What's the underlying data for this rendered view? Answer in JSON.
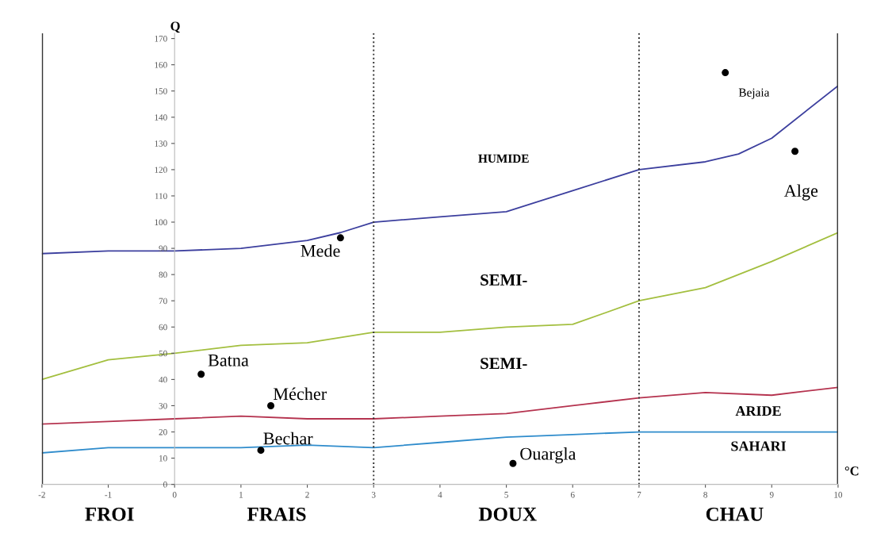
{
  "chart_data": {
    "type": "line",
    "xlabel": "°C",
    "ylabel": "Q",
    "xlim": [
      -2,
      10
    ],
    "xticks": [
      -2,
      -1,
      0,
      1,
      2,
      3,
      4,
      5,
      6,
      7,
      8,
      9,
      10
    ],
    "ylim": [
      0,
      172
    ],
    "yticks": [
      0,
      10,
      20,
      30,
      40,
      50,
      60,
      70,
      80,
      90,
      100,
      110,
      120,
      130,
      140,
      150,
      160,
      170
    ],
    "grid": false,
    "legend": false,
    "marker": "none",
    "line_style": "solid",
    "series": [
      {
        "color": "#3c3f9e",
        "x": [
          -2,
          -1,
          0,
          1,
          2,
          2.5,
          3,
          4,
          5,
          6,
          7,
          8,
          8.5,
          9,
          10
        ],
        "values": [
          88,
          89,
          89,
          90,
          93,
          96,
          100,
          102,
          104,
          112,
          120,
          123,
          126,
          132,
          152
        ]
      },
      {
        "color": "#a3bf3f",
        "x": [
          -2,
          -1,
          0,
          1,
          2,
          3,
          4,
          5,
          6,
          7,
          8,
          9,
          10
        ],
        "values": [
          40,
          47.5,
          50,
          53,
          54,
          58,
          58,
          60,
          61,
          70,
          75,
          85,
          96
        ]
      },
      {
        "color": "#b5334f",
        "x": [
          -2,
          -1,
          0,
          1,
          2,
          3,
          4,
          5,
          6,
          7,
          8,
          9,
          10
        ],
        "values": [
          23,
          24,
          25,
          26,
          25,
          25,
          26,
          27,
          30,
          33,
          35,
          34,
          37
        ]
      },
      {
        "color": "#2f8ccc",
        "x": [
          -2,
          -1,
          0,
          1,
          2,
          3,
          4,
          5,
          6,
          7,
          8,
          9,
          10
        ],
        "values": [
          12,
          14,
          14,
          14,
          15,
          14,
          16,
          18,
          19,
          20,
          20,
          20,
          20
        ]
      },
      {
        "type": "scatter",
        "name": "Bejaia",
        "color": "#000000",
        "x": [
          8.3
        ],
        "values": [
          157
        ]
      },
      {
        "type": "scatter",
        "name": "Alge",
        "color": "#000000",
        "x": [
          9.35
        ],
        "values": [
          127
        ]
      },
      {
        "type": "scatter",
        "name": "Mede",
        "color": "#000000",
        "x": [
          2.5
        ],
        "values": [
          94
        ]
      },
      {
        "type": "scatter",
        "name": "Batna",
        "color": "#000000",
        "x": [
          0.4
        ],
        "values": [
          42
        ]
      },
      {
        "type": "scatter",
        "name": "Mécher",
        "color": "#000000",
        "x": [
          1.45
        ],
        "values": [
          30
        ]
      },
      {
        "type": "scatter",
        "name": "Bechar",
        "color": "#000000",
        "x": [
          1.3
        ],
        "values": [
          13
        ]
      },
      {
        "type": "scatter",
        "name": "Ouargla",
        "color": "#000000",
        "x": [
          5.1
        ],
        "values": [
          8
        ]
      }
    ],
    "ref_lines": [
      {
        "axis": "x",
        "value": -2,
        "color": "#333333",
        "line_style": "solid"
      },
      {
        "axis": "x",
        "value": 10,
        "color": "#333333",
        "line_style": "solid"
      },
      {
        "axis": "x",
        "value": 3,
        "color": "#333333",
        "line_style": "dotted"
      },
      {
        "axis": "x",
        "value": 7,
        "color": "#333333",
        "line_style": "dotted"
      }
    ],
    "annotations": [
      "HUMIDE",
      "SEMI-",
      "SEMI-",
      "ARIDE",
      "SAHARI",
      "FROI",
      "FRAIS",
      "DOUX",
      "CHAU"
    ]
  }
}
